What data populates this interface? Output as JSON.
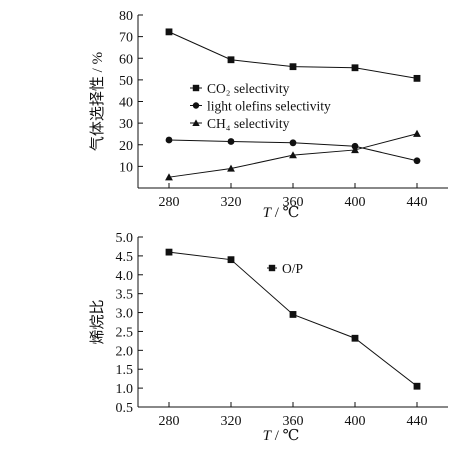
{
  "chart_data": [
    {
      "type": "line",
      "x": [
        280,
        320,
        360,
        400,
        440
      ],
      "xlim": [
        260,
        460
      ],
      "ylim": [
        0,
        80
      ],
      "xticks": [
        280,
        320,
        360,
        400,
        440
      ],
      "yticks": [
        10,
        20,
        30,
        40,
        50,
        60,
        70,
        80
      ],
      "xlabel_var": "T",
      "xlabel_unit": "/ ℃",
      "ylabel": "气体选择性 / %",
      "legend_position": "center-right",
      "grid": false,
      "series": [
        {
          "name": "CO₂ selectivity",
          "marker": "square",
          "values": [
            72.2,
            59.3,
            56.1,
            55.6,
            50.7
          ]
        },
        {
          "name": "light olefins selectivity",
          "marker": "circle",
          "values": [
            22.2,
            21.5,
            20.9,
            19.3,
            12.6
          ]
        },
        {
          "name": "CH₄ selectivity",
          "marker": "triangle",
          "values": [
            5.0,
            9.0,
            15.2,
            17.6,
            25.1
          ]
        }
      ]
    },
    {
      "type": "line",
      "x": [
        280,
        320,
        360,
        400,
        440
      ],
      "xlim": [
        260,
        460
      ],
      "ylim": [
        0.5,
        5.0
      ],
      "xticks": [
        280,
        320,
        360,
        400,
        440
      ],
      "yticks": [
        "0.5",
        "1.0",
        "1.5",
        "2.0",
        "2.5",
        "3.0",
        "3.5",
        "4.0",
        "4.5",
        "5.0"
      ],
      "xlabel_var": "T",
      "xlabel_unit": "/ ℃",
      "ylabel": "烯烷比",
      "legend_position": "top-right",
      "grid": false,
      "series": [
        {
          "name": "O/P",
          "marker": "square",
          "values": [
            4.6,
            4.4,
            2.95,
            2.32,
            1.05
          ]
        }
      ]
    }
  ]
}
